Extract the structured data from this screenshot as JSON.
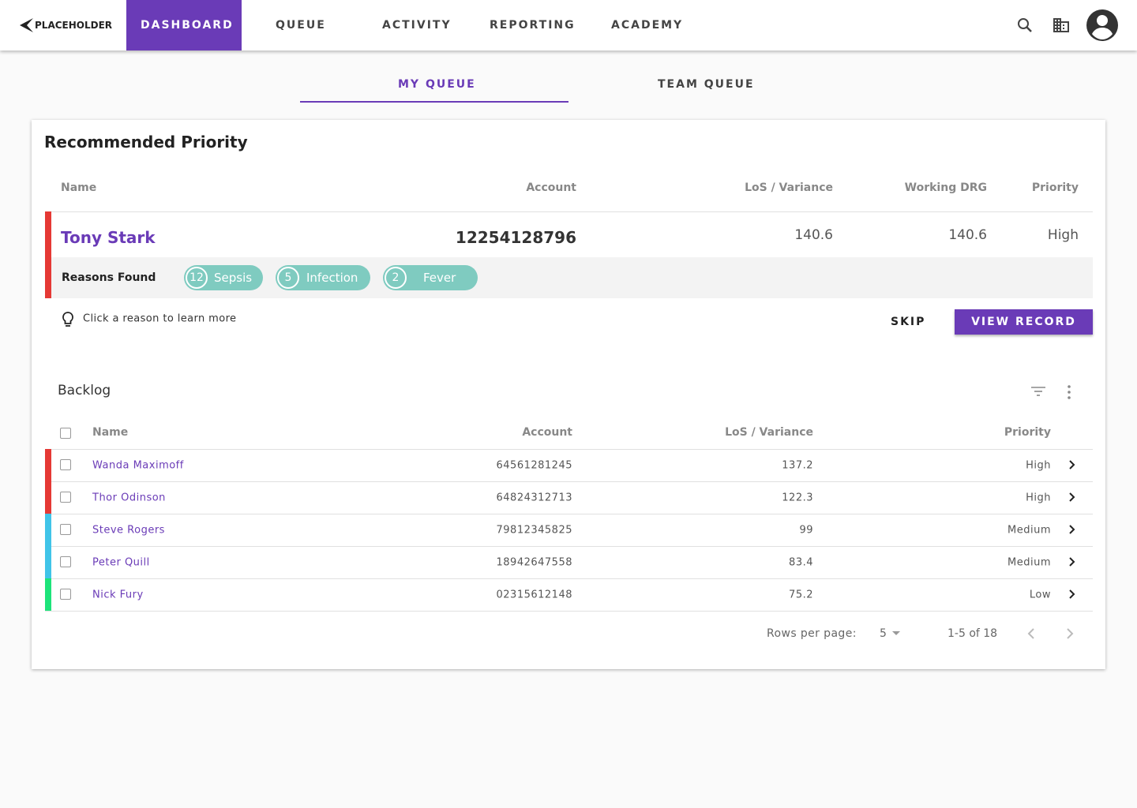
{
  "nav": {
    "logo": "PLACEHOLDER",
    "items": [
      "DASHBOARD",
      "QUEUE",
      "ACTIVITY",
      "REPORTING",
      "ACADEMY"
    ]
  },
  "tabs": [
    "MY QUEUE",
    "TEAM QUEUE"
  ],
  "recommended": {
    "title": "Recommended Priority",
    "columns": [
      "Name",
      "Account",
      "LoS / Variance",
      "Working DRG",
      "Priority"
    ],
    "record": {
      "name": "Tony Stark",
      "account": "12254128796",
      "los": 140.6,
      "drg": 140.6,
      "priority": "High",
      "color": "#e53935"
    },
    "reasons_label": "Reasons Found",
    "reasons": [
      {
        "count": 12,
        "label": "Sepsis"
      },
      {
        "count": 5,
        "label": "Infection"
      },
      {
        "count": 2,
        "label": "Fever"
      }
    ],
    "hint": "Click a reason to learn more",
    "skip": "SKIP",
    "view": "VIEW RECORD"
  },
  "backlog": {
    "title": "Backlog",
    "columns": [
      "Name",
      "Account",
      "LoS / Variance",
      "Priority"
    ],
    "rows": [
      {
        "name": "Wanda Maximoff",
        "account": "64561281245",
        "los": 137.2,
        "priority": "High",
        "color": "#e53935"
      },
      {
        "name": "Thor Odinson",
        "account": "64824312713",
        "los": 122.3,
        "priority": "High",
        "color": "#e53935"
      },
      {
        "name": "Steve Rogers",
        "account": "79812345825",
        "los": 99,
        "priority": "Medium",
        "color": "#40c4e8"
      },
      {
        "name": "Peter Quill",
        "account": "18942647558",
        "los": 83.4,
        "priority": "Medium",
        "color": "#40c4e8"
      },
      {
        "name": "Nick Fury",
        "account": "02315612148",
        "los": 75.2,
        "priority": "Low",
        "color": "#1de37a"
      }
    ],
    "rows_per_page_label": "Rows per page:",
    "rows_per_page": 5,
    "range": "1-5 of 18"
  }
}
